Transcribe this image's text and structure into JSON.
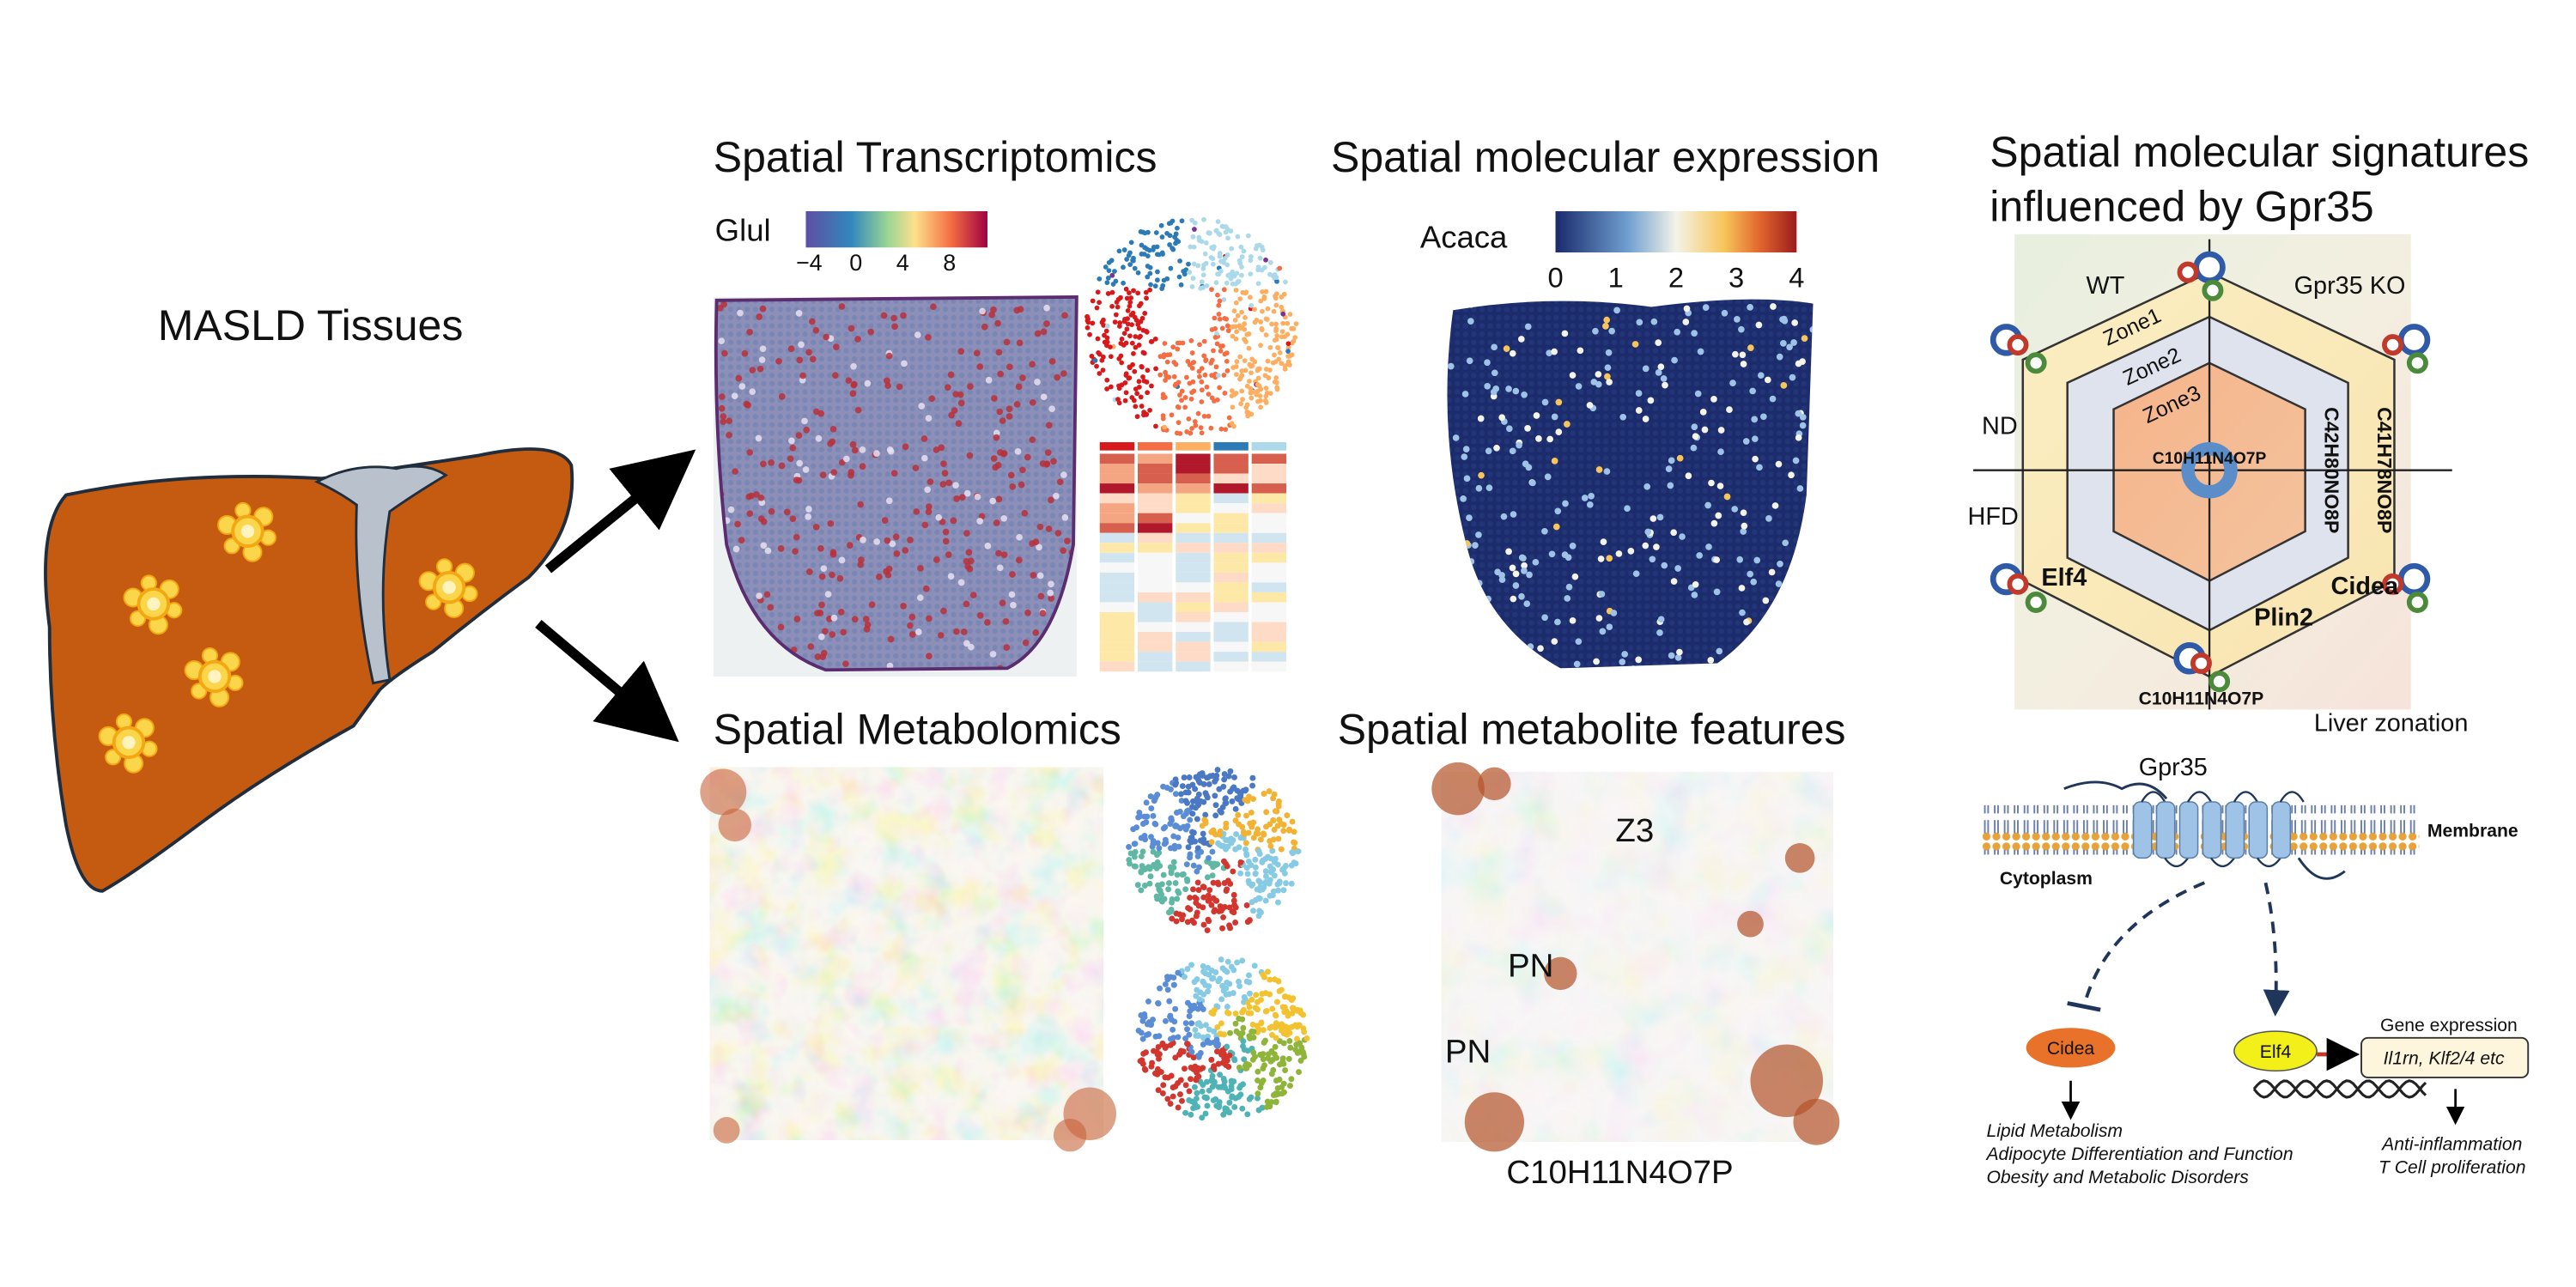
{
  "left": {
    "title": "MASLD Tissues"
  },
  "transcriptomics": {
    "title": "Spatial Transcriptomics",
    "gene": "Glul",
    "colorbar_ticks": [
      "−4",
      "0",
      "4",
      "8"
    ]
  },
  "expression": {
    "title": "Spatial molecular expression",
    "gene": "Acaca",
    "colorbar_ticks": [
      "0",
      "1",
      "2",
      "3",
      "4"
    ]
  },
  "metabolomics": {
    "title": "Spatial Metabolomics"
  },
  "metabolite_features": {
    "title": "Spatial metabolite features",
    "labels": [
      "Z3",
      "PN",
      "PN"
    ],
    "caption": "C10H11N4O7P"
  },
  "signatures": {
    "title_lines": [
      "Spatial molecular signatures",
      "influenced by Gpr35"
    ],
    "corner_labels": [
      "WT",
      "Gpr35 KO"
    ],
    "zones": [
      "Zone1",
      "Zone2",
      "Zone3"
    ],
    "diet_labels": [
      "ND",
      "HFD"
    ],
    "center_label": "C10H11N4O7P",
    "side_labels": [
      "C42H80NO8P",
      "C41H78NO8P"
    ],
    "genes": [
      "Elf4",
      "Cidea",
      "Plin2"
    ],
    "bottom_label": "C10H11N4O7P",
    "caption": "Liver zonation"
  },
  "pathway": {
    "receptor": "Gpr35",
    "membrane": "Membrane",
    "cytoplasm": "Cytoplasm",
    "cidea": "Cidea",
    "elf4": "Elf4",
    "gene_expression": "Gene expression",
    "targets": "Il1rn, Klf2/4 etc",
    "cidea_effects": [
      "Lipid Metabolism",
      "Adipocyte Differentiation and Function",
      "Obesity and Metabolic Disorders"
    ],
    "elf4_effects": [
      "Anti-inflammation",
      "T Cell proliferation"
    ]
  }
}
